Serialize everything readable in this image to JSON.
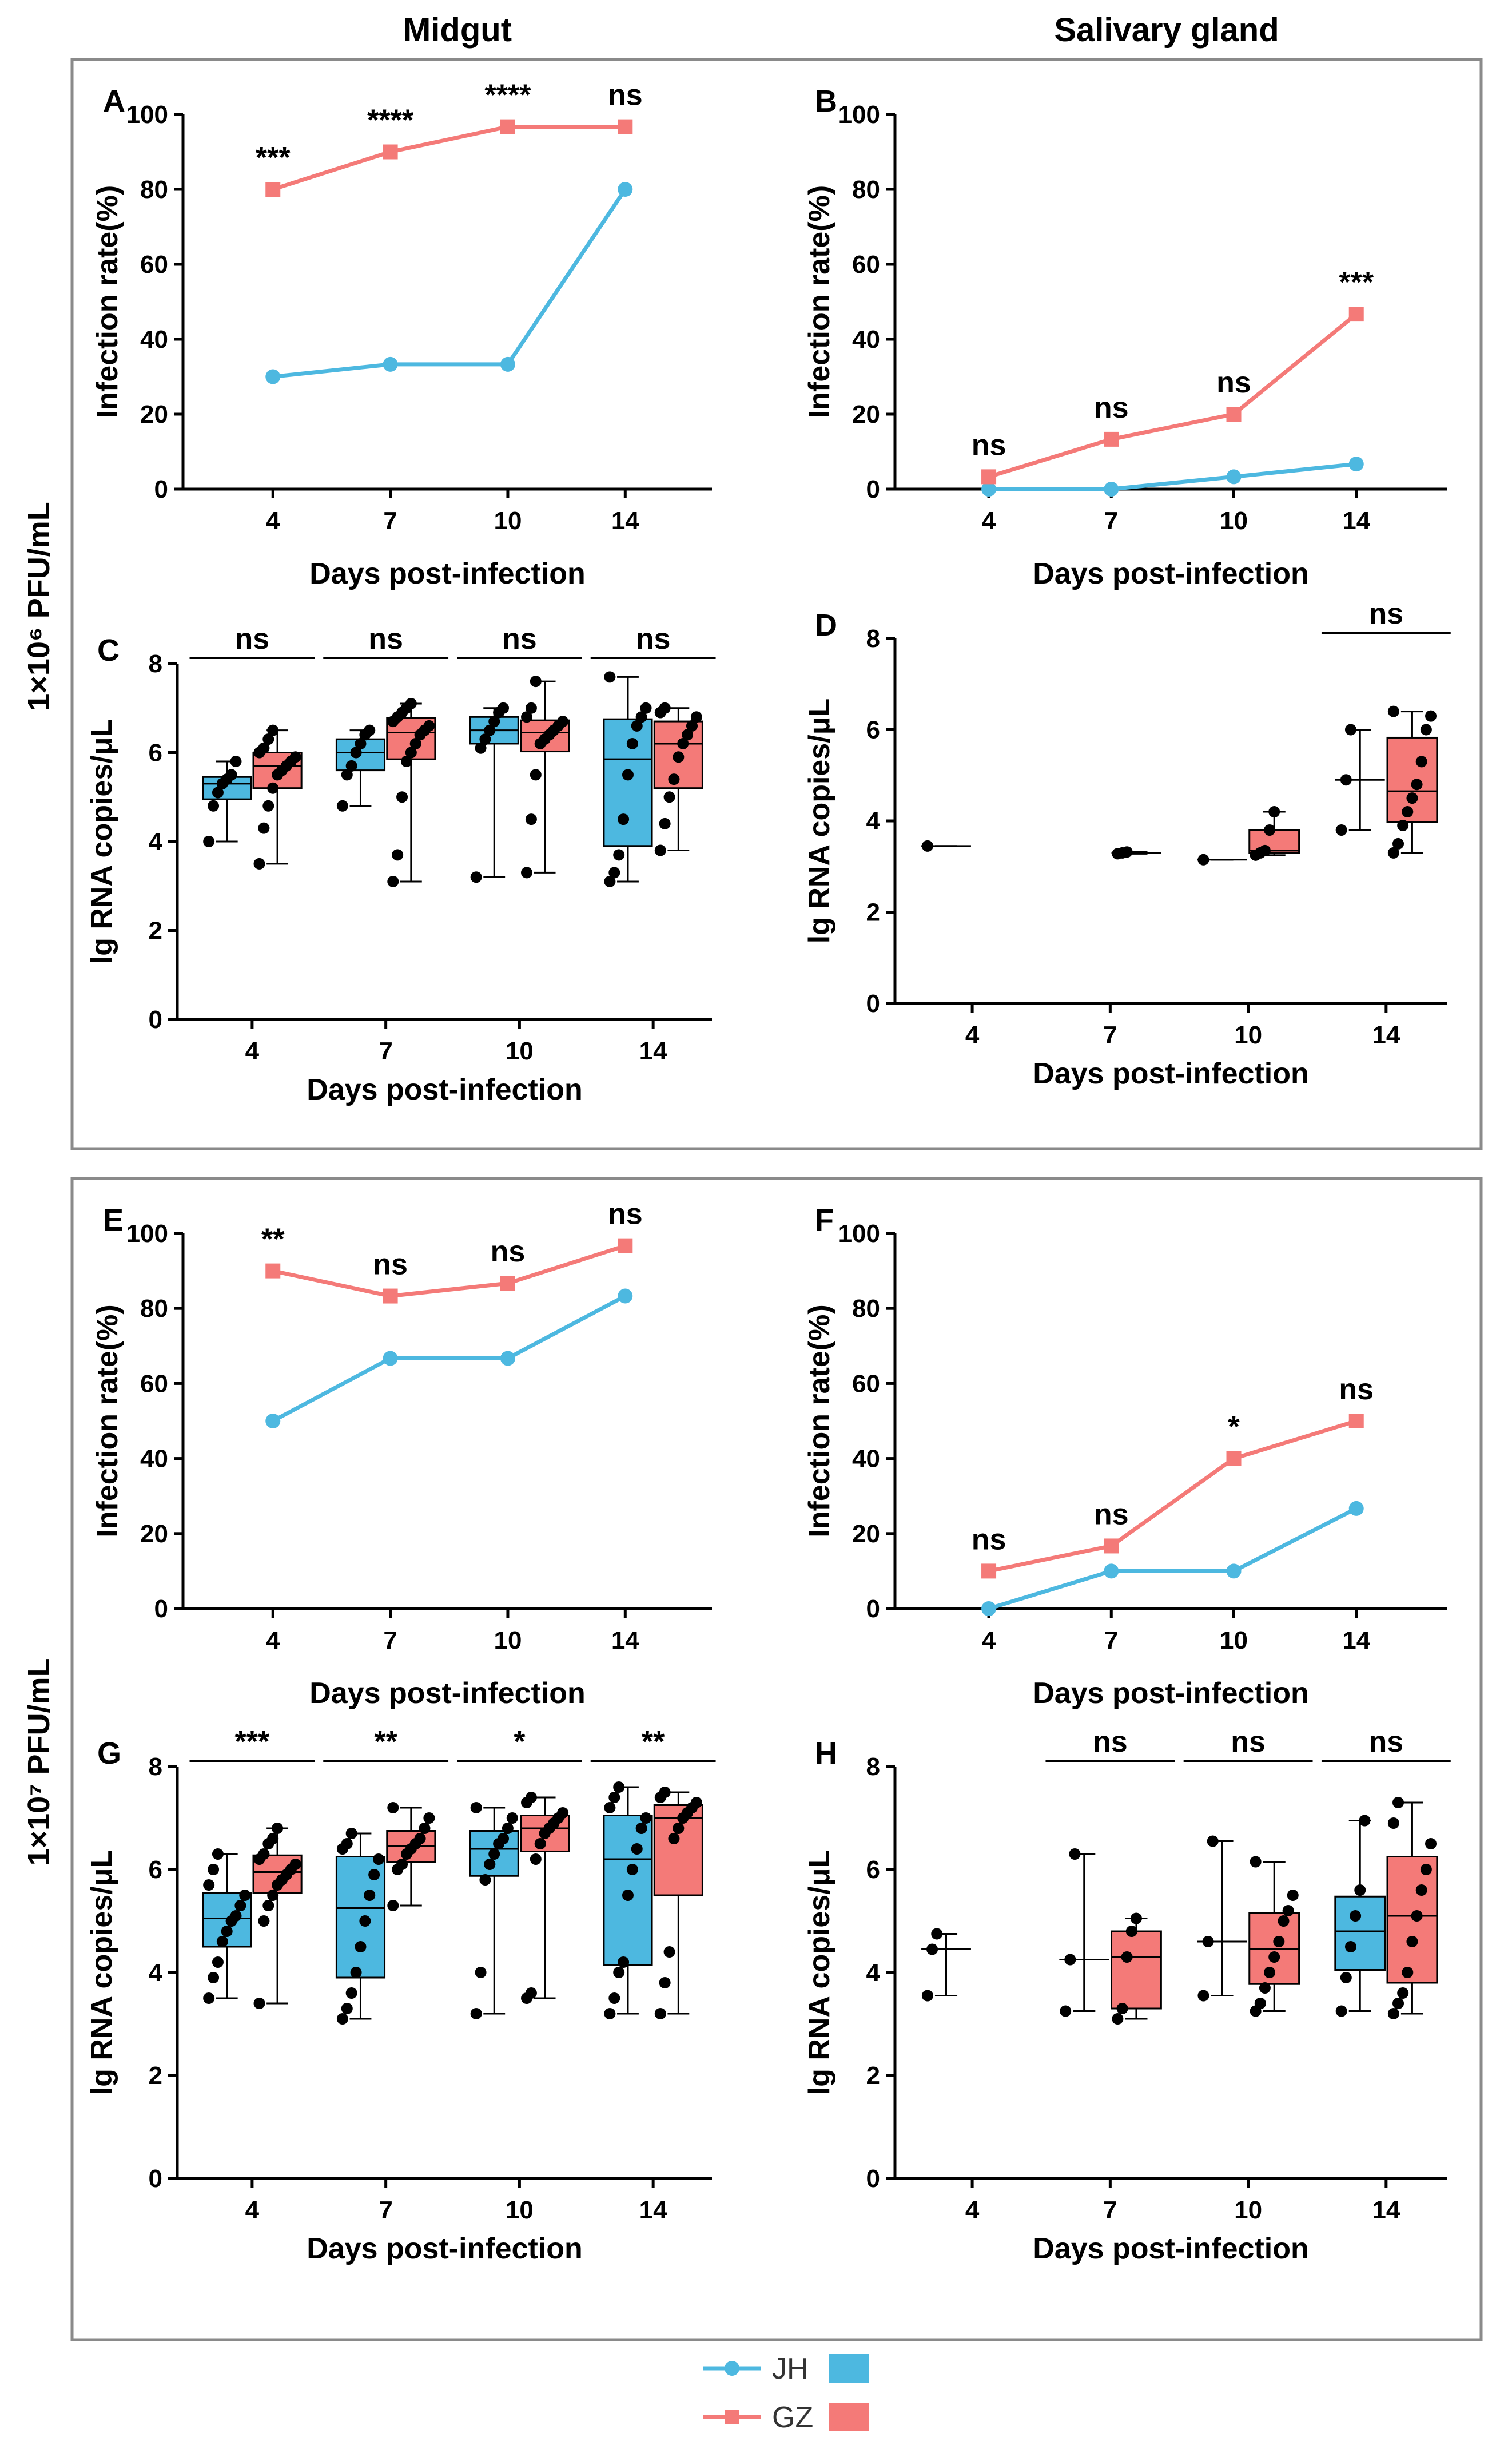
{
  "figure": {
    "col_left": "Midgut",
    "col_right": "Salivary gland",
    "row_top": "1×10⁶ PFU/mL",
    "row_bottom": "1×10⁷ PFU/mL"
  },
  "legend": {
    "jh": "JH",
    "gz": "GZ",
    "colors": {
      "jh": "#4db8e0",
      "gz": "#f47a78"
    }
  },
  "chart_data": [
    {
      "id": "A",
      "type": "line",
      "title": "Midgut 1×10⁶ PFU/mL",
      "xlabel": "Days post-infection",
      "ylabel": "Infection rate(%)",
      "categories": [
        "4",
        "7",
        "10",
        "14"
      ],
      "ylim": [
        0,
        100
      ],
      "yticks": [
        0,
        20,
        40,
        60,
        80,
        100
      ],
      "series": [
        {
          "name": "JH",
          "values": [
            30,
            33.3,
            33.3,
            80
          ]
        },
        {
          "name": "GZ",
          "values": [
            80,
            90,
            96.7,
            96.7
          ]
        }
      ],
      "annotations": [
        "***",
        "****",
        "****",
        "ns"
      ]
    },
    {
      "id": "B",
      "type": "line",
      "title": "Salivary gland 1×10⁶ PFU/mL",
      "xlabel": "Days post-infection",
      "ylabel": "Infection rate(%)",
      "categories": [
        "4",
        "7",
        "10",
        "14"
      ],
      "ylim": [
        0,
        100
      ],
      "yticks": [
        0,
        20,
        40,
        60,
        80,
        100
      ],
      "series": [
        {
          "name": "JH",
          "values": [
            0,
            0,
            3.3,
            6.7
          ]
        },
        {
          "name": "GZ",
          "values": [
            3.3,
            13.3,
            20,
            46.7
          ]
        }
      ],
      "annotations": [
        "ns",
        "ns",
        "ns",
        "***"
      ]
    },
    {
      "id": "C",
      "type": "box",
      "title": "Midgut 1×10⁶ PFU/mL RNA",
      "xlabel": "Days post-infection",
      "ylabel": "lg RNA copies/μL",
      "categories": [
        "4",
        "7",
        "10",
        "14"
      ],
      "ylim": [
        0,
        8
      ],
      "yticks": [
        0,
        2,
        4,
        6,
        8
      ],
      "groups": [
        {
          "day": "4",
          "jh": [
            4.0,
            4.8,
            5.1,
            5.3,
            5.4,
            5.5,
            5.8
          ],
          "gz": [
            3.5,
            4.3,
            4.8,
            5.2,
            5.5,
            5.6,
            5.7,
            5.8,
            5.9,
            6.0,
            6.1,
            6.3,
            6.5
          ]
        },
        {
          "day": "7",
          "jh": [
            4.8,
            5.5,
            5.7,
            6.0,
            6.2,
            6.4,
            6.5
          ],
          "gz": [
            3.1,
            3.7,
            5.0,
            5.8,
            6.0,
            6.2,
            6.4,
            6.5,
            6.6,
            6.7,
            6.8,
            6.9,
            7.0,
            7.1
          ]
        },
        {
          "day": "10",
          "jh": [
            3.2,
            6.1,
            6.3,
            6.5,
            6.7,
            6.9,
            7.0
          ],
          "gz": [
            3.3,
            4.5,
            5.5,
            6.2,
            6.3,
            6.4,
            6.5,
            6.6,
            6.7,
            6.8,
            7.0,
            7.6
          ]
        },
        {
          "day": "14",
          "jh": [
            3.1,
            3.3,
            3.7,
            4.5,
            5.5,
            6.2,
            6.6,
            6.8,
            7.0,
            7.7
          ],
          "gz": [
            3.8,
            4.4,
            5.0,
            5.4,
            5.9,
            6.2,
            6.4,
            6.6,
            6.8,
            6.9,
            7.0
          ]
        }
      ],
      "annotations": [
        "ns",
        "ns",
        "ns",
        "ns"
      ]
    },
    {
      "id": "D",
      "type": "box",
      "title": "Salivary gland 1×10⁶ PFU/mL RNA",
      "xlabel": "Days post-infection",
      "ylabel": "lg RNA copies/μL",
      "categories": [
        "4",
        "7",
        "10",
        "14"
      ],
      "ylim": [
        0,
        8
      ],
      "yticks": [
        0,
        2,
        4,
        6,
        8
      ],
      "groups": [
        {
          "day": "4",
          "jh": [
            3.45
          ],
          "gz": []
        },
        {
          "day": "7",
          "jh": [],
          "gz": [
            3.28,
            3.3,
            3.32
          ]
        },
        {
          "day": "10",
          "jh": [
            3.15
          ],
          "gz": [
            3.25,
            3.3,
            3.35,
            3.8,
            4.2
          ]
        },
        {
          "day": "14",
          "jh": [
            3.8,
            4.9,
            6.0
          ],
          "gz": [
            3.3,
            3.5,
            3.9,
            4.2,
            4.5,
            4.8,
            5.3,
            6.0,
            6.3,
            6.4
          ]
        }
      ],
      "annotations": [
        "",
        "",
        "",
        "ns"
      ]
    },
    {
      "id": "E",
      "type": "line",
      "title": "Midgut 1×10⁷ PFU/mL",
      "xlabel": "Days post-infection",
      "ylabel": "Infection rate(%)",
      "categories": [
        "4",
        "7",
        "10",
        "14"
      ],
      "ylim": [
        0,
        100
      ],
      "yticks": [
        0,
        20,
        40,
        60,
        80,
        100
      ],
      "series": [
        {
          "name": "JH",
          "values": [
            50,
            66.7,
            66.7,
            83.3
          ]
        },
        {
          "name": "GZ",
          "values": [
            90,
            83.3,
            86.7,
            96.7
          ]
        }
      ],
      "annotations": [
        "**",
        "ns",
        "ns",
        "ns"
      ]
    },
    {
      "id": "F",
      "type": "line",
      "title": "Salivary gland 1×10⁷ PFU/mL",
      "xlabel": "Days post-infection",
      "ylabel": "Infection rate(%)",
      "categories": [
        "4",
        "7",
        "10",
        "14"
      ],
      "ylim": [
        0,
        100
      ],
      "yticks": [
        0,
        20,
        40,
        60,
        80,
        100
      ],
      "series": [
        {
          "name": "JH",
          "values": [
            0,
            10,
            10,
            26.7
          ]
        },
        {
          "name": "GZ",
          "values": [
            10,
            16.7,
            40,
            50
          ]
        }
      ],
      "annotations": [
        "ns",
        "ns",
        "*",
        "ns"
      ]
    },
    {
      "id": "G",
      "type": "box",
      "title": "Midgut 1×10⁷ PFU/mL RNA",
      "xlabel": "Days post-infection",
      "ylabel": "lg RNA copies/μL",
      "categories": [
        "4",
        "7",
        "10",
        "14"
      ],
      "ylim": [
        0,
        8
      ],
      "yticks": [
        0,
        2,
        4,
        6,
        8
      ],
      "groups": [
        {
          "day": "4",
          "jh": [
            3.5,
            3.9,
            4.2,
            4.6,
            4.8,
            5.0,
            5.1,
            5.3,
            5.5,
            5.7,
            6.0,
            6.3
          ],
          "gz": [
            3.4,
            5.0,
            5.3,
            5.5,
            5.7,
            5.8,
            5.9,
            6.0,
            6.1,
            6.2,
            6.3,
            6.5,
            6.6,
            6.8
          ]
        },
        {
          "day": "7",
          "jh": [
            3.1,
            3.3,
            3.6,
            4.0,
            4.5,
            5.0,
            5.5,
            5.9,
            6.2,
            6.4,
            6.5,
            6.7
          ],
          "gz": [
            5.3,
            6.0,
            6.1,
            6.3,
            6.4,
            6.5,
            6.6,
            6.8,
            7.0,
            7.2
          ]
        },
        {
          "day": "10",
          "jh": [
            3.2,
            4.0,
            5.8,
            6.1,
            6.3,
            6.5,
            6.6,
            6.8,
            7.0,
            7.2
          ],
          "gz": [
            3.5,
            3.6,
            6.2,
            6.5,
            6.7,
            6.8,
            6.9,
            7.0,
            7.1,
            7.3,
            7.4
          ]
        },
        {
          "day": "14",
          "jh": [
            3.2,
            3.5,
            4.0,
            4.2,
            5.5,
            6.0,
            6.4,
            6.8,
            7.0,
            7.2,
            7.4,
            7.6
          ],
          "gz": [
            3.2,
            3.8,
            4.4,
            6.6,
            6.8,
            7.0,
            7.1,
            7.2,
            7.3,
            7.4,
            7.5
          ]
        }
      ],
      "annotations": [
        "***",
        "**",
        "*",
        "**"
      ]
    },
    {
      "id": "H",
      "type": "box",
      "title": "Salivary gland 1×10⁷ PFU/mL RNA",
      "xlabel": "Days post-infection",
      "ylabel": "lg RNA copies/μL",
      "categories": [
        "4",
        "7",
        "10",
        "14"
      ],
      "ylim": [
        0,
        8
      ],
      "yticks": [
        0,
        2,
        4,
        6,
        8
      ],
      "groups": [
        {
          "day": "4",
          "jh": [
            3.55,
            4.45,
            4.75
          ],
          "gz": []
        },
        {
          "day": "7",
          "jh": [
            3.25,
            4.25,
            6.3
          ],
          "gz": [
            3.1,
            3.3,
            4.3,
            4.8,
            5.05
          ]
        },
        {
          "day": "10",
          "jh": [
            3.55,
            4.6,
            6.55
          ],
          "gz": [
            3.25,
            3.4,
            3.7,
            4.0,
            4.3,
            4.6,
            5.0,
            5.2,
            5.5,
            6.15
          ]
        },
        {
          "day": "14",
          "jh": [
            3.25,
            3.9,
            4.5,
            5.1,
            5.6,
            6.95
          ],
          "gz": [
            3.2,
            3.4,
            3.6,
            4.0,
            4.6,
            5.1,
            5.6,
            6.0,
            6.5,
            6.9,
            7.3
          ]
        }
      ],
      "annotations": [
        "",
        "ns",
        "ns",
        "ns"
      ]
    }
  ]
}
